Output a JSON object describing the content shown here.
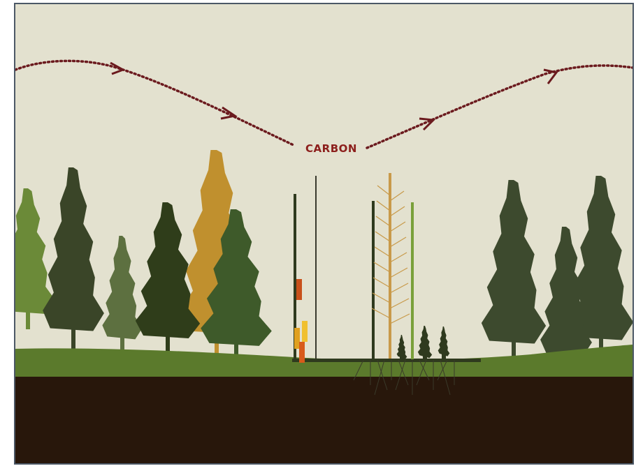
{
  "label": "CARBON"
}
